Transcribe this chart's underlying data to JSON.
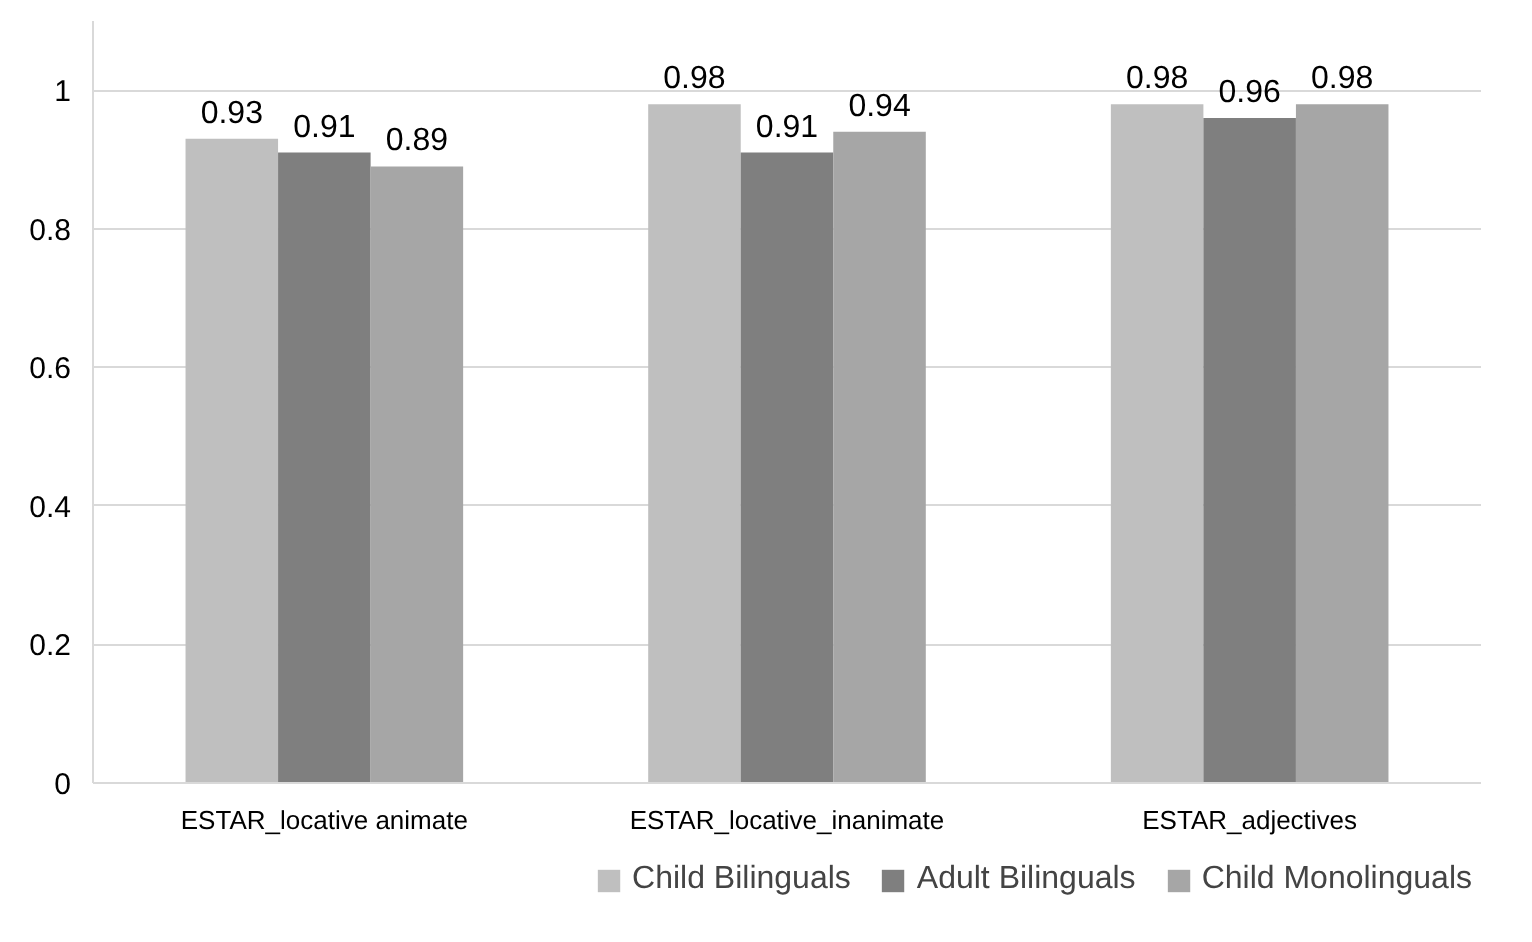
{
  "chart_data": {
    "type": "bar",
    "categories": [
      "ESTAR_locative animate",
      "ESTAR_locative_inanimate",
      "ESTAR_adjectives"
    ],
    "series": [
      {
        "name": "Child Bilinguals",
        "color": "#bfbfbf",
        "values": [
          0.93,
          0.98,
          0.98
        ]
      },
      {
        "name": "Adult Bilinguals",
        "color": "#7f7f7f",
        "values": [
          0.91,
          0.91,
          0.96
        ]
      },
      {
        "name": "Child Monolinguals",
        "color": "#a6a6a6",
        "values": [
          0.89,
          0.94,
          0.98
        ]
      }
    ],
    "ylim": [
      0,
      1.1
    ],
    "yticks": [
      {
        "value": 0,
        "label": "0"
      },
      0.2,
      0.4,
      0.6,
      0.8,
      {
        "value": 1,
        "label": "1"
      }
    ],
    "grid": "y",
    "legend": "bottom",
    "data_labels": true
  }
}
